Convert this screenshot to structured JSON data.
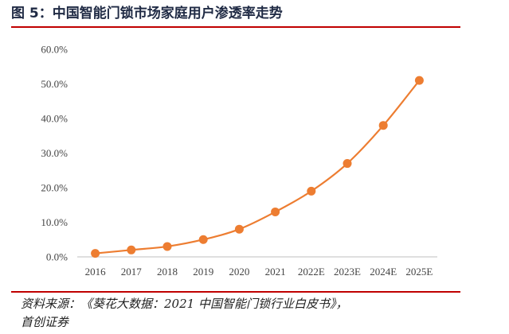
{
  "figure": {
    "title": "图 5：中国智能门锁市场家庭用户渗透率走势",
    "source_line1": "资料来源：《葵花大数据：2021 中国智能门锁行业白皮书》，",
    "source_line2": "首创证券"
  },
  "colors": {
    "accent_rule": "#c00000",
    "series": "#ed7d31",
    "axis": "#bfbfbf"
  },
  "chart_data": {
    "type": "line",
    "title": "",
    "xlabel": "",
    "ylabel": "",
    "categories": [
      "2016",
      "2017",
      "2018",
      "2019",
      "2020",
      "2021",
      "2022E",
      "2023E",
      "2024E",
      "2025E"
    ],
    "series": [
      {
        "values": [
          1.0,
          2.0,
          3.0,
          5.0,
          8.0,
          13.0,
          19.0,
          27.0,
          38.0,
          51.0
        ]
      }
    ],
    "ylim": [
      0,
      60
    ],
    "yticks": [
      "0.0%",
      "10.0%",
      "20.0%",
      "30.0%",
      "40.0%",
      "50.0%",
      "60.0%"
    ],
    "grid": false,
    "legend": "none",
    "markers": true
  }
}
